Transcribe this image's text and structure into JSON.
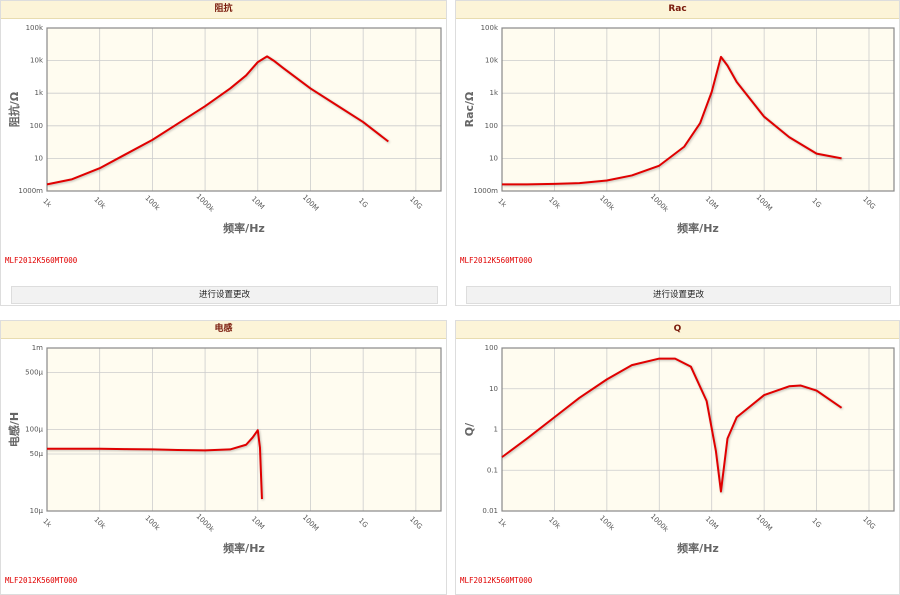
{
  "panels": [
    {
      "part": "MLF2012K560MT000",
      "button": "进行设置更改"
    },
    {
      "part": "MLF2012K560MT000",
      "button": "进行设置更改"
    },
    {
      "part": "MLF2012K560MT000"
    },
    {
      "part": "MLF2012K560MT000"
    }
  ],
  "chart_data": [
    {
      "type": "line",
      "title": "阻抗",
      "xlabel": "频率/Hz",
      "ylabel": "阻抗/Ω",
      "log_x": true,
      "log_y": true,
      "grid": true,
      "x": [
        1000,
        3000,
        10000,
        30000,
        100000,
        300000,
        1000000,
        3000000,
        6000000,
        10000000,
        15000000,
        20000000,
        30000000,
        100000000,
        300000000,
        1000000000,
        3000000000
      ],
      "series": [
        {
          "color": "#e00000",
          "values": [
            1.6,
            2.3,
            5,
            13,
            37,
            115,
            400,
            1400,
            3500,
            9000,
            13500,
            10000,
            6000,
            1400,
            450,
            130,
            33
          ]
        }
      ],
      "xlim": [
        1000,
        30000000000
      ],
      "xticks": [
        {
          "value": 1000,
          "label": "1k"
        },
        {
          "value": 10000,
          "label": "10k"
        },
        {
          "value": 100000,
          "label": "100k"
        },
        {
          "value": 1000000,
          "label": "1000k"
        },
        {
          "value": 10000000,
          "label": "10M"
        },
        {
          "value": 100000000,
          "label": "100M"
        },
        {
          "value": 1000000000,
          "label": "1G"
        },
        {
          "value": 10000000000,
          "label": "10G"
        }
      ],
      "ylim": [
        1,
        100000
      ],
      "yticks": [
        {
          "value": 1,
          "label": "1000m"
        },
        10,
        100,
        {
          "value": 1000,
          "label": "1k"
        },
        {
          "value": 10000,
          "label": "10k"
        },
        {
          "value": 100000,
          "label": "100k"
        }
      ]
    },
    {
      "type": "line",
      "title": "Rac",
      "xlabel": "频率/Hz",
      "ylabel": "Rac/Ω",
      "log_x": true,
      "log_y": true,
      "grid": true,
      "x": [
        1000,
        3000,
        10000,
        30000,
        100000,
        300000,
        1000000,
        3000000,
        6000000,
        10000000,
        15000000,
        20000000,
        30000000,
        100000000,
        300000000,
        1000000000,
        3000000000
      ],
      "series": [
        {
          "color": "#e00000",
          "values": [
            1.6,
            1.6,
            1.65,
            1.75,
            2.1,
            3,
            6,
            23,
            120,
            1100,
            13000,
            7000,
            2200,
            190,
            45,
            14,
            10
          ]
        }
      ],
      "xlim": [
        1000,
        30000000000
      ],
      "xticks": [
        {
          "value": 1000,
          "label": "1k"
        },
        {
          "value": 10000,
          "label": "10k"
        },
        {
          "value": 100000,
          "label": "100k"
        },
        {
          "value": 1000000,
          "label": "1000k"
        },
        {
          "value": 10000000,
          "label": "10M"
        },
        {
          "value": 100000000,
          "label": "100M"
        },
        {
          "value": 1000000000,
          "label": "1G"
        },
        {
          "value": 10000000000,
          "label": "10G"
        }
      ],
      "ylim": [
        1,
        100000
      ],
      "yticks": [
        {
          "value": 1,
          "label": "1000m"
        },
        10,
        100,
        {
          "value": 1000,
          "label": "1k"
        },
        {
          "value": 10000,
          "label": "10k"
        },
        {
          "value": 100000,
          "label": "100k"
        }
      ]
    },
    {
      "type": "line",
      "title": "电感",
      "xlabel": "频率/Hz",
      "ylabel": "电感/H",
      "log_x": true,
      "log_y": true,
      "grid": true,
      "x": [
        1000,
        3000,
        10000,
        30000,
        100000,
        300000,
        1000000,
        3000000,
        6000000,
        8000000,
        10000000,
        11000000,
        12000000
      ],
      "series": [
        {
          "color": "#e00000",
          "values": [
            5.8e-05,
            5.8e-05,
            5.8e-05,
            5.75e-05,
            5.7e-05,
            5.6e-05,
            5.55e-05,
            5.7e-05,
            6.5e-05,
            8e-05,
            9.8e-05,
            6e-05,
            1.4e-05
          ]
        }
      ],
      "xlim": [
        1000,
        30000000000
      ],
      "xticks": [
        {
          "value": 1000,
          "label": "1k"
        },
        {
          "value": 10000,
          "label": "10k"
        },
        {
          "value": 100000,
          "label": "100k"
        },
        {
          "value": 1000000,
          "label": "1000k"
        },
        {
          "value": 10000000,
          "label": "10M"
        },
        {
          "value": 100000000,
          "label": "100M"
        },
        {
          "value": 1000000000,
          "label": "1G"
        },
        {
          "value": 10000000000,
          "label": "10G"
        }
      ],
      "ylim": [
        1e-05,
        0.001
      ],
      "yticks": [
        {
          "value": 1e-05,
          "label": "10µ"
        },
        {
          "value": 5e-05,
          "label": "50µ"
        },
        {
          "value": 0.0001,
          "label": "100µ"
        },
        {
          "value": 0.0005,
          "label": "500µ"
        },
        {
          "value": 0.001,
          "label": "1m"
        }
      ]
    },
    {
      "type": "line",
      "title": "Q",
      "xlabel": "频率/Hz",
      "ylabel": "Q/",
      "log_x": true,
      "log_y": true,
      "grid": true,
      "x": [
        1000,
        3000,
        10000,
        30000,
        100000,
        300000,
        1000000,
        2000000,
        4000000,
        8000000,
        12000000,
        15000000,
        20000000,
        30000000,
        100000000,
        300000000,
        500000000,
        1000000000,
        3000000000
      ],
      "series": [
        {
          "color": "#e00000",
          "values": [
            0.21,
            0.6,
            2,
            6,
            17,
            38,
            55,
            55,
            35,
            5,
            0.3,
            0.03,
            0.6,
            2,
            7,
            11.5,
            12,
            9,
            3.4
          ]
        }
      ],
      "xlim": [
        1000,
        30000000000
      ],
      "xticks": [
        {
          "value": 1000,
          "label": "1k"
        },
        {
          "value": 10000,
          "label": "10k"
        },
        {
          "value": 100000,
          "label": "100k"
        },
        {
          "value": 1000000,
          "label": "1000k"
        },
        {
          "value": 10000000,
          "label": "10M"
        },
        {
          "value": 100000000,
          "label": "100M"
        },
        {
          "value": 1000000000,
          "label": "1G"
        },
        {
          "value": 10000000000,
          "label": "10G"
        }
      ],
      "ylim": [
        0.01,
        100
      ],
      "yticks": [
        0.01,
        0.1,
        1,
        10,
        100
      ]
    }
  ]
}
